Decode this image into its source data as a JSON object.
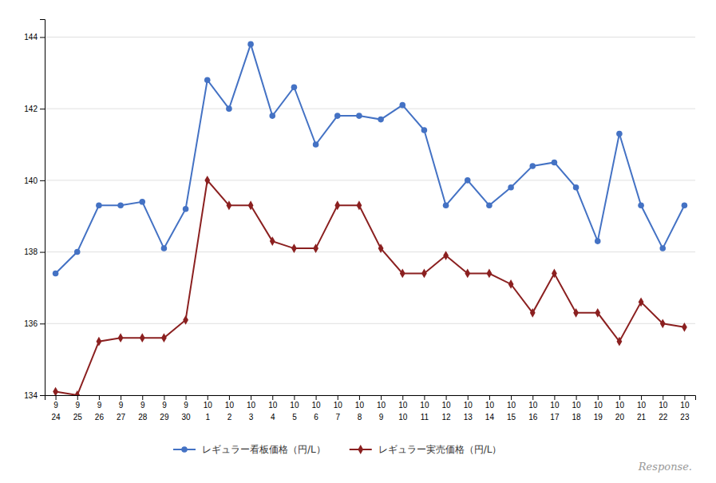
{
  "chart_data": {
    "type": "line",
    "categories": [
      [
        "9",
        "24"
      ],
      [
        "9",
        "25"
      ],
      [
        "9",
        "26"
      ],
      [
        "9",
        "27"
      ],
      [
        "9",
        "28"
      ],
      [
        "9",
        "29"
      ],
      [
        "9",
        "30"
      ],
      [
        "10",
        "1"
      ],
      [
        "10",
        "2"
      ],
      [
        "10",
        "3"
      ],
      [
        "10",
        "4"
      ],
      [
        "10",
        "5"
      ],
      [
        "10",
        "6"
      ],
      [
        "10",
        "7"
      ],
      [
        "10",
        "8"
      ],
      [
        "10",
        "9"
      ],
      [
        "10",
        "10"
      ],
      [
        "10",
        "11"
      ],
      [
        "10",
        "12"
      ],
      [
        "10",
        "13"
      ],
      [
        "10",
        "14"
      ],
      [
        "10",
        "15"
      ],
      [
        "10",
        "16"
      ],
      [
        "10",
        "17"
      ],
      [
        "10",
        "18"
      ],
      [
        "10",
        "19"
      ],
      [
        "10",
        "20"
      ],
      [
        "10",
        "21"
      ],
      [
        "10",
        "22"
      ],
      [
        "10",
        "23"
      ]
    ],
    "series": [
      {
        "name": "レギュラー看板価格（円/L）",
        "color": "#4472C4",
        "marker": "circle",
        "values": [
          137.4,
          138.0,
          139.3,
          139.3,
          139.4,
          138.1,
          139.2,
          142.8,
          142.0,
          143.8,
          141.8,
          142.6,
          141.0,
          141.8,
          141.8,
          141.7,
          142.1,
          141.4,
          139.3,
          140.0,
          139.3,
          139.8,
          140.4,
          140.5,
          139.8,
          138.3,
          141.3,
          139.3,
          138.1,
          139.3
        ]
      },
      {
        "name": "レギュラー実売価格（円/L）",
        "color": "#8B2020",
        "marker": "diamond",
        "values": [
          134.1,
          134.0,
          135.5,
          135.6,
          135.6,
          135.6,
          136.1,
          140.0,
          139.3,
          139.3,
          138.3,
          138.1,
          138.1,
          139.3,
          139.3,
          138.1,
          137.4,
          137.4,
          137.9,
          137.4,
          137.4,
          137.1,
          136.3,
          137.4,
          136.3,
          136.3,
          135.5,
          136.6,
          136.0,
          135.9
        ]
      }
    ],
    "ylim": [
      134,
      144.5
    ],
    "yticks": [
      134,
      136,
      138,
      140,
      142,
      144
    ],
    "grid": true,
    "legend": "bottom",
    "annotations": [
      "Response."
    ]
  }
}
